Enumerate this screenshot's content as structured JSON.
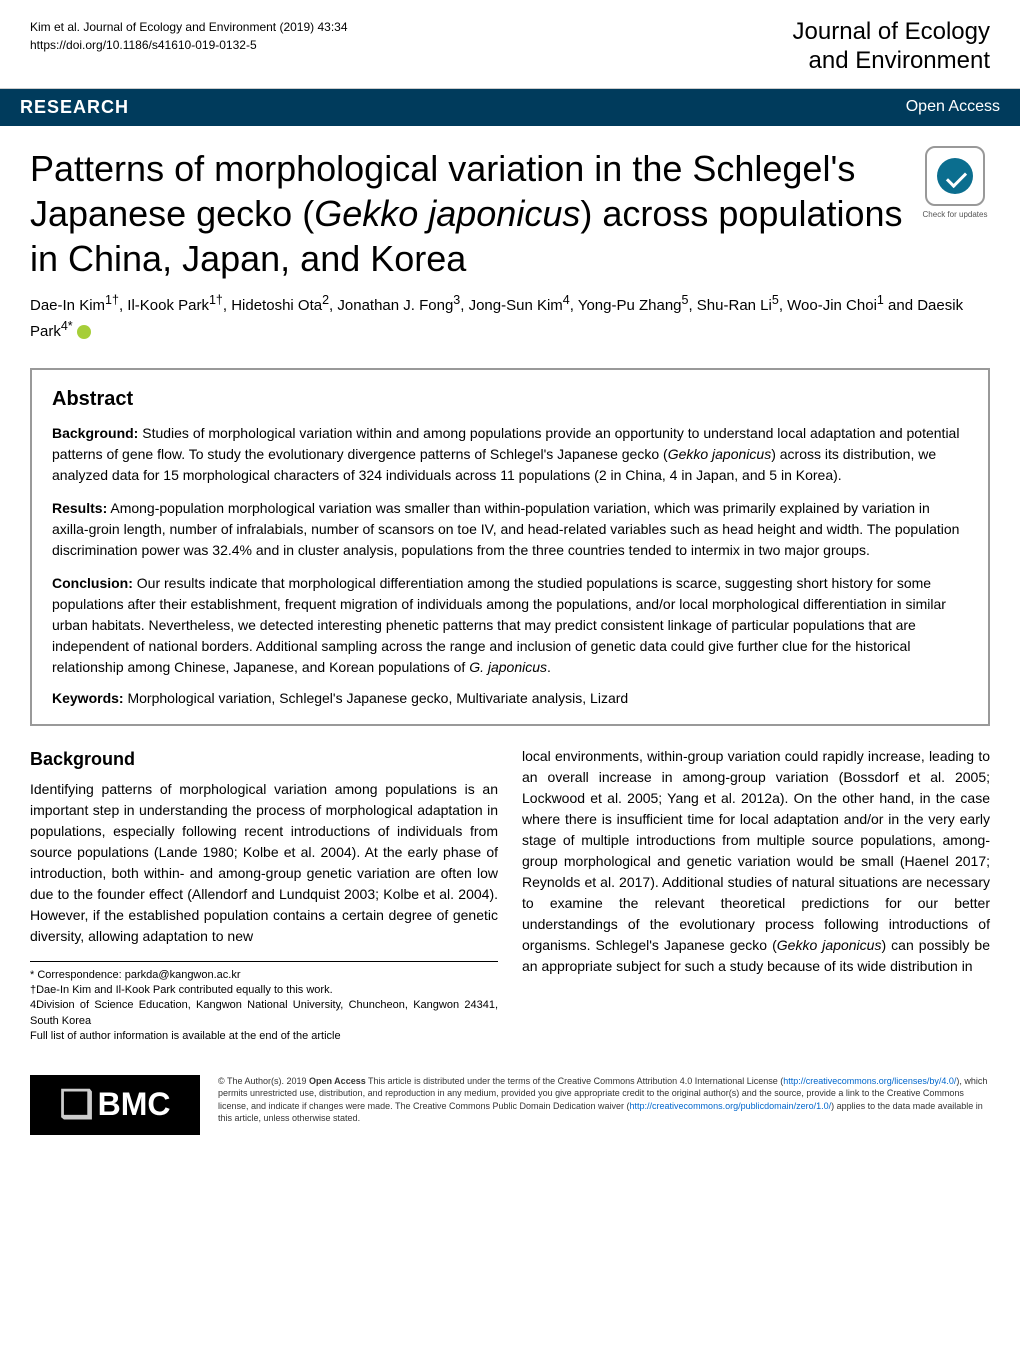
{
  "header": {
    "citation_line1": "Kim et al. Journal of Ecology and Environment        (2019) 43:34",
    "citation_line2": "https://doi.org/10.1186/s41610-019-0132-5",
    "journal_line1": "Journal of Ecology",
    "journal_line2": "and Environment"
  },
  "banner": {
    "type": "RESEARCH",
    "access": "Open Access"
  },
  "title": {
    "html": "Patterns of morphological variation in the Schlegel's Japanese gecko (<em>Gekko japonicus</em>) across populations in China, Japan, and Korea"
  },
  "badge": {
    "label": "Check for updates"
  },
  "authors": {
    "html": "Dae-In Kim<sup>1†</sup>, Il-Kook Park<sup>1†</sup>, Hidetoshi Ota<sup>2</sup>, Jonathan J. Fong<sup>3</sup>, Jong-Sun Kim<sup>4</sup>, Yong-Pu Zhang<sup>5</sup>, Shu-Ran Li<sup>5</sup>, Woo-Jin Choi<sup>1</sup> and Daesik Park<sup>4*</sup>"
  },
  "abstract": {
    "heading": "Abstract",
    "background_label": "Background:",
    "background_html": "Studies of morphological variation within and among populations provide an opportunity to understand local adaptation and potential patterns of gene flow. To study the evolutionary divergence patterns of Schlegel's Japanese gecko (<em>Gekko japonicus</em>) across its distribution, we analyzed data for 15 morphological characters of 324 individuals across 11 populations (2 in China, 4 in Japan, and 5 in Korea).",
    "results_label": "Results:",
    "results_text": "Among-population morphological variation was smaller than within-population variation, which was primarily explained by variation in axilla-groin length, number of infralabials, number of scansors on toe IV, and head-related variables such as head height and width. The population discrimination power was 32.4% and in cluster analysis, populations from the three countries tended to intermix in two major groups.",
    "conclusion_label": "Conclusion:",
    "conclusion_html": "Our results indicate that morphological differentiation among the studied populations is scarce, suggesting short history for some populations after their establishment, frequent migration of individuals among the populations, and/or local morphological differentiation in similar urban habitats. Nevertheless, we detected interesting phenetic patterns that may predict consistent linkage of particular populations that are independent of national borders. Additional sampling across the range and inclusion of genetic data could give further clue for the historical relationship among Chinese, Japanese, and Korean populations of <em>G. japonicus</em>.",
    "keywords_label": "Keywords:",
    "keywords_text": "Morphological variation, Schlegel's Japanese gecko, Multivariate analysis, Lizard"
  },
  "body": {
    "section_heading": "Background",
    "left_col_html": "Identifying patterns of morphological variation among populations is an important step in understanding the process of morphological adaptation in populations, especially following recent introductions of individuals from source populations (Lande 1980; Kolbe et al. 2004). At the early phase of introduction, both within- and among-group genetic variation are often low due to the founder effect (Allendorf and Lundquist 2003; Kolbe et al. 2004). However, if the established population contains a certain degree of genetic diversity, allowing adaptation to new",
    "right_col_html": "local environments, within-group variation could rapidly increase, leading to an overall increase in among-group variation (Bossdorf et al. 2005; Lockwood et al. 2005; Yang et al. 2012a). On the other hand, in the case where there is insufficient time for local adaptation and/or in the very early stage of multiple introductions from multiple source populations, among-group morphological and genetic variation would be small (Haenel 2017; Reynolds et al. 2017). Additional studies of natural situations are necessary to examine the relevant theoretical predictions for our better understandings of the evolutionary process following introductions of organisms. Schlegel's Japanese gecko (<em>Gekko japonicus</em>) can possibly be an appropriate subject for such a study because of its wide distribution in"
  },
  "footnotes": {
    "line1": "* Correspondence: parkda@kangwon.ac.kr",
    "line2": "†Dae-In Kim and Il-Kook Park contributed equally to this work.",
    "line3": "4Division of Science Education, Kangwon National University, Chuncheon, Kangwon 24341, South Korea",
    "line4": "Full list of author information is available at the end of the article"
  },
  "footer": {
    "logo": "BMC",
    "license_html": "© The Author(s). 2019 <b>Open Access</b> This article is distributed under the terms of the Creative Commons Attribution 4.0 International License (<a>http://creativecommons.org/licenses/by/4.0/</a>), which permits unrestricted use, distribution, and reproduction in any medium, provided you give appropriate credit to the original author(s) and the source, provide a link to the Creative Commons license, and indicate if changes were made. The Creative Commons Public Domain Dedication waiver (<a>http://creativecommons.org/publicdomain/zero/1.0/</a>) applies to the data made available in this article, unless otherwise stated."
  },
  "colors": {
    "banner_bg": "#003b5c",
    "link": "#0066cc",
    "orcid": "#a6ce39"
  }
}
